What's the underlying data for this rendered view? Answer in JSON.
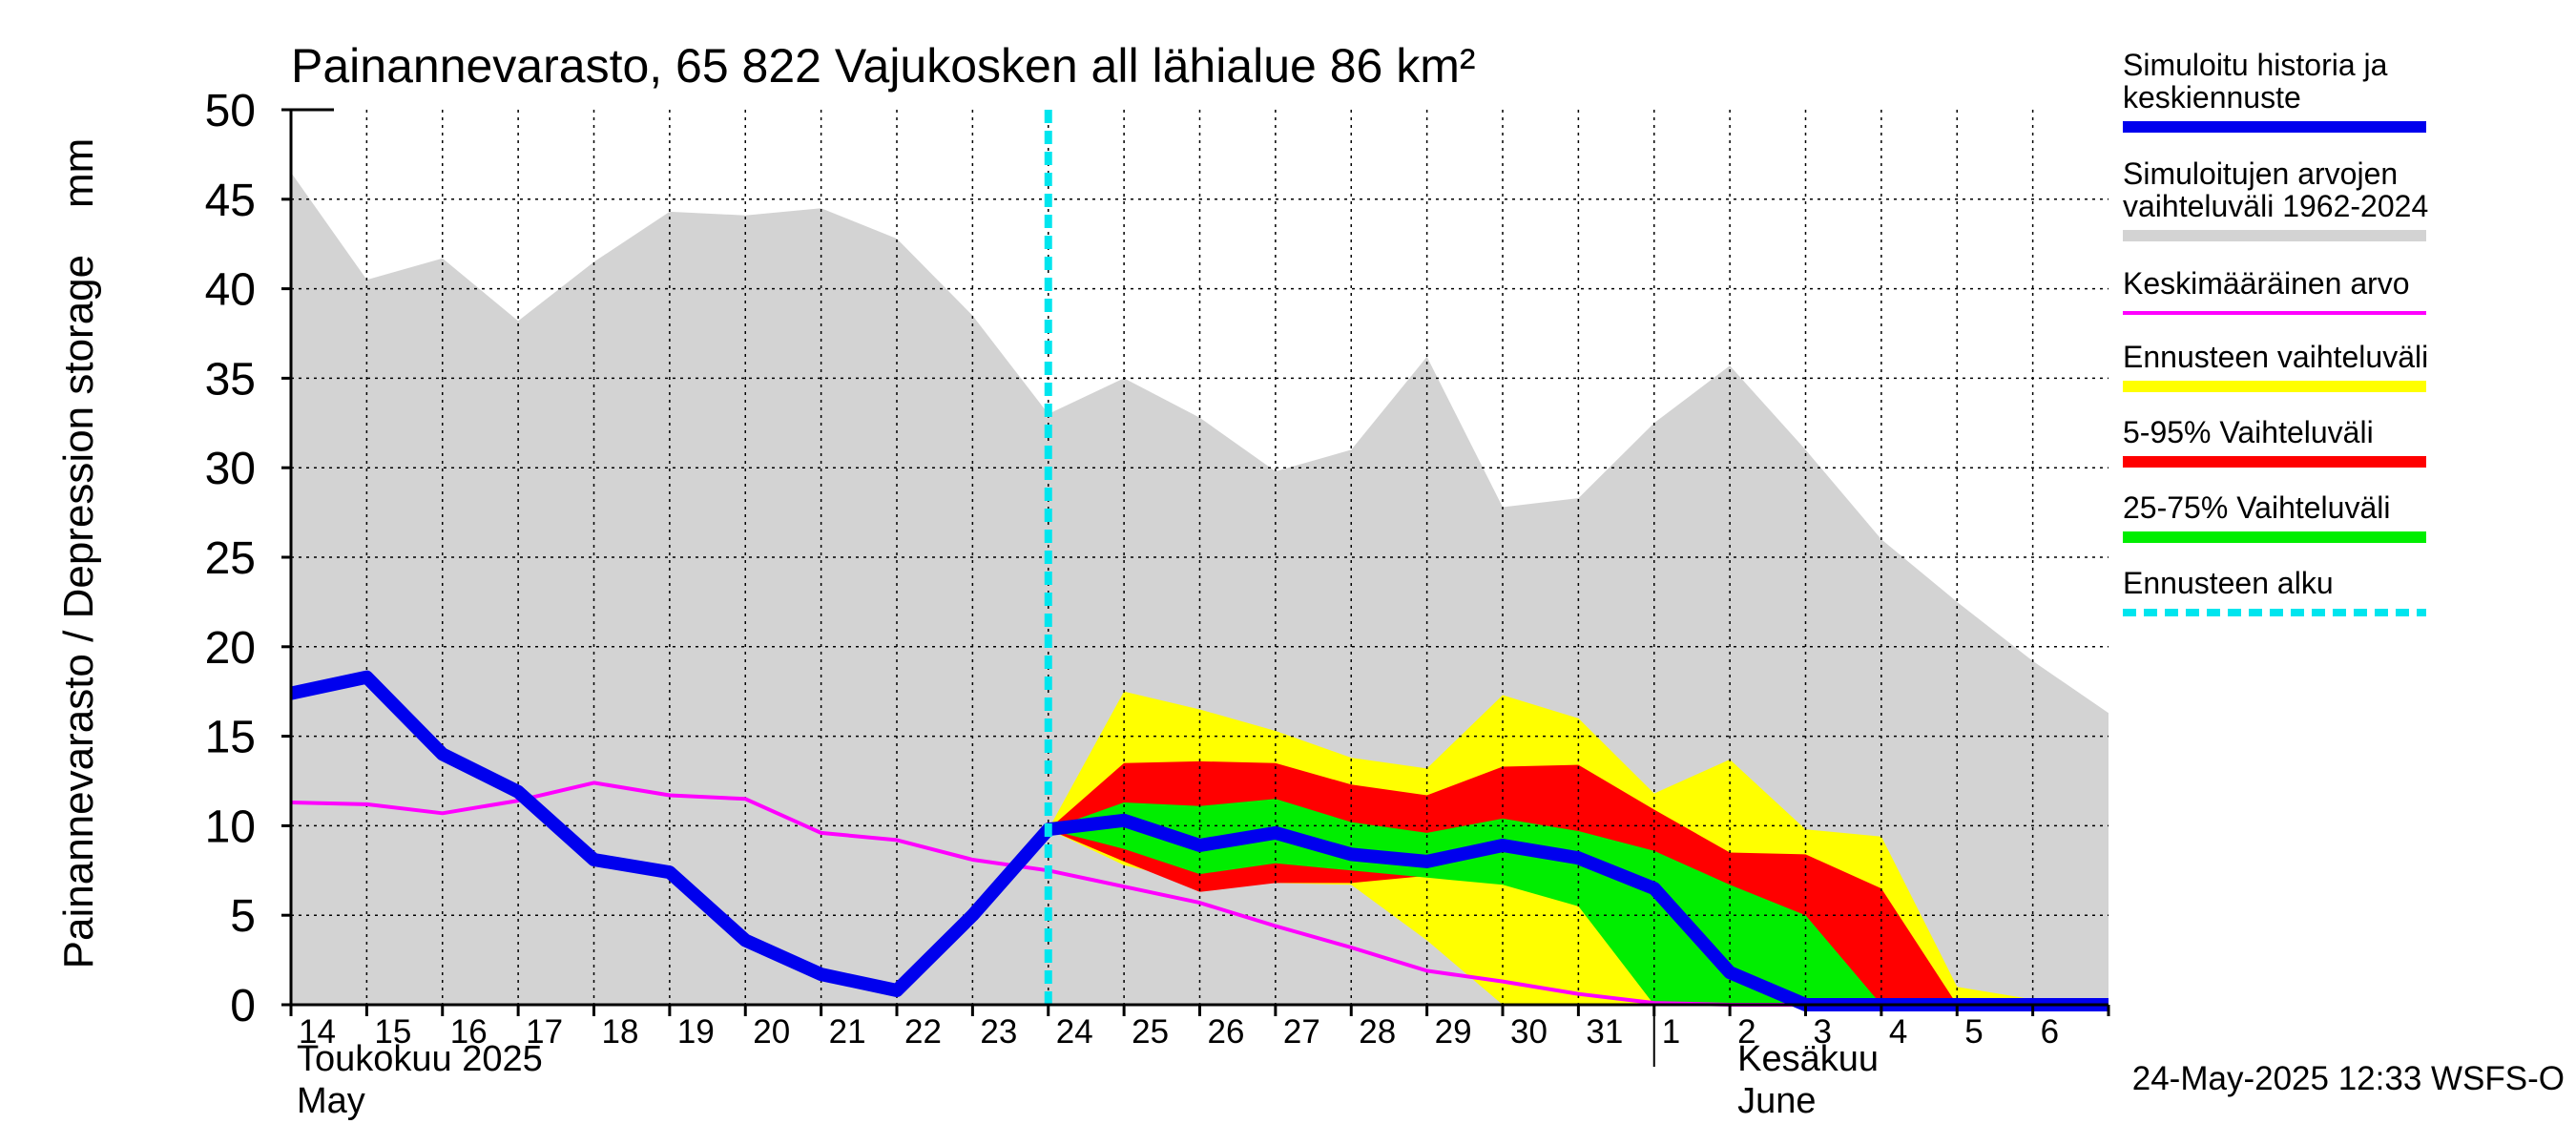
{
  "chart_data": {
    "type": "area",
    "title": "Painannevarasto, 65 822 Vajukosken all lähialue 86 km²",
    "ylabel": "Painannevarasto / Depression storage    mm",
    "ylim": [
      0,
      50
    ],
    "yticks": [
      0,
      5,
      10,
      15,
      20,
      25,
      30,
      35,
      40,
      45,
      50
    ],
    "grid": true,
    "legend_position": "right",
    "x_day_labels": [
      "14",
      "15",
      "16",
      "17",
      "18",
      "19",
      "20",
      "21",
      "22",
      "23",
      "24",
      "25",
      "26",
      "27",
      "28",
      "29",
      "30",
      "31",
      "1",
      "2",
      "3",
      "4",
      "5",
      "6"
    ],
    "month_labels": [
      {
        "fi": "Toukokuu  2025",
        "en": "May"
      },
      {
        "fi": "Kesäkuu",
        "en": "June"
      }
    ],
    "x": [
      "2025-05-14",
      "2025-05-15",
      "2025-05-16",
      "2025-05-17",
      "2025-05-18",
      "2025-05-19",
      "2025-05-20",
      "2025-05-21",
      "2025-05-22",
      "2025-05-23",
      "2025-05-24",
      "2025-05-25",
      "2025-05-26",
      "2025-05-27",
      "2025-05-28",
      "2025-05-29",
      "2025-05-30",
      "2025-05-31",
      "2025-06-01",
      "2025-06-02",
      "2025-06-03",
      "2025-06-04",
      "2025-06-05",
      "2025-06-06",
      "2025-06-07"
    ],
    "forecast_start": "2025-05-24",
    "series": [
      {
        "name": "Simuloitujen arvojen vaihteluväli 1962-2024",
        "kind": "band",
        "color": "#d3d3d3",
        "upper": [
          46.5,
          40.5,
          41.7,
          38.2,
          41.5,
          44.3,
          44.1,
          44.5,
          42.8,
          38.5,
          33.0,
          35.0,
          32.8,
          29.8,
          31.0,
          36.2,
          27.8,
          28.3,
          32.5,
          35.7,
          31.0,
          26.0,
          22.5,
          19.2,
          16.3
        ],
        "lower": [
          0,
          0,
          0,
          0,
          0,
          0,
          0,
          0,
          0,
          0,
          0,
          0,
          0,
          0,
          0,
          0,
          0,
          0,
          0,
          0,
          0,
          0,
          0,
          0,
          0
        ]
      },
      {
        "name": "Ennusteen vaihteluväli",
        "kind": "band",
        "color": "#ffff00",
        "x_from": "2025-05-24",
        "upper": [
          9.8,
          17.5,
          16.5,
          15.3,
          13.8,
          13.2,
          17.3,
          16.0,
          11.8,
          13.7,
          9.8,
          9.4,
          1.0,
          0.3,
          0.3
        ],
        "lower": [
          9.8,
          7.8,
          6.8,
          6.8,
          6.7,
          3.6,
          0.0,
          0.0,
          0.0,
          0.0,
          0.0,
          0.0,
          0.0,
          0.0,
          0.0
        ]
      },
      {
        "name": "5-95% Vaihteluväli",
        "kind": "band",
        "color": "#ff0000",
        "x_from": "2025-05-24",
        "upper": [
          9.8,
          13.5,
          13.6,
          13.5,
          12.3,
          11.7,
          13.3,
          13.4,
          10.9,
          8.5,
          8.4,
          6.5,
          0.0,
          0.0,
          0.0
        ],
        "lower": [
          9.8,
          8.0,
          6.3,
          6.8,
          6.8,
          7.2,
          7.7,
          5.6,
          0.0,
          0.0,
          0.0,
          0.0,
          0.0,
          0.0,
          0.0
        ]
      },
      {
        "name": "25-75% Vaihteluväli",
        "kind": "band",
        "color": "#00ee00",
        "x_from": "2025-05-24",
        "upper": [
          9.8,
          11.3,
          11.1,
          11.5,
          10.2,
          9.6,
          10.4,
          9.7,
          8.6,
          6.7,
          5.0,
          0.0,
          0.0,
          0.0,
          0.0
        ],
        "lower": [
          9.8,
          8.7,
          7.3,
          7.9,
          7.5,
          7.1,
          6.7,
          5.5,
          0.0,
          0.0,
          0.0,
          0.0,
          0.0,
          0.0,
          0.0
        ]
      },
      {
        "name": "Keskimääräinen arvo",
        "kind": "line",
        "color": "#ff00ff",
        "values": [
          11.3,
          11.2,
          10.7,
          11.4,
          12.4,
          11.7,
          11.5,
          9.6,
          9.2,
          8.1,
          7.5,
          6.6,
          5.7,
          4.4,
          3.2,
          1.9,
          1.3,
          0.6,
          0.1,
          0.0,
          0.0,
          0.0,
          0.0,
          0.0,
          0.0
        ]
      },
      {
        "name": "Simuloitu historia ja keskiennuste",
        "kind": "line",
        "color": "#0000ee",
        "values": [
          17.4,
          18.3,
          14.0,
          11.9,
          8.1,
          7.4,
          3.6,
          1.7,
          0.8,
          5.0,
          9.8,
          10.3,
          8.9,
          9.6,
          8.4,
          8.0,
          8.9,
          8.2,
          6.5,
          1.8,
          0.0,
          0.0,
          0.0,
          0.0,
          0.0
        ]
      }
    ],
    "legend": [
      {
        "label": "Simuloitu historia ja keskiennuste",
        "color": "#0000ee",
        "style": "thick"
      },
      {
        "label": "Simuloitujen arvojen vaihteluväli 1962-2024",
        "color": "#d3d3d3",
        "style": "thick"
      },
      {
        "label": "Keskimääräinen arvo",
        "color": "#ff00ff",
        "style": "thin"
      },
      {
        "label": "Ennusteen vaihteluväli",
        "color": "#ffff00",
        "style": "thick"
      },
      {
        "label": "5-95% Vaihteluväli",
        "color": "#ff0000",
        "style": "thick"
      },
      {
        "label": "25-75% Vaihteluväli",
        "color": "#00ee00",
        "style": "thick"
      },
      {
        "label": "Ennusteen alku",
        "color": "#00e5ee",
        "style": "dashed"
      }
    ],
    "footer": "24-May-2025 12:33 WSFS-O"
  }
}
